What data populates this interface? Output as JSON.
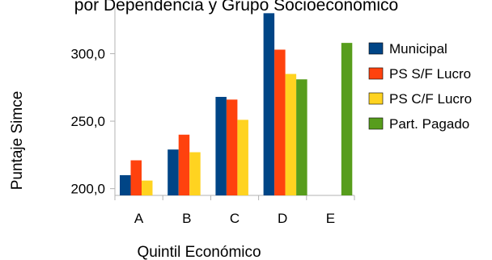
{
  "chart_data": {
    "type": "bar",
    "title": "por Dependencia y Grupo Socioeconómico",
    "xlabel": "Quintil Económico",
    "ylabel": "Puntaje Simce",
    "categories": [
      "A",
      "B",
      "C",
      "D",
      "E"
    ],
    "ylim": [
      195,
      335
    ],
    "yticks": [
      "200,0",
      "250,0",
      "300,0"
    ],
    "ytick_values": [
      200,
      250,
      300
    ],
    "grid": false,
    "legend_position": "right",
    "series": [
      {
        "name": "Municipal",
        "color": "#004586",
        "values": [
          210,
          229,
          268,
          330,
          null
        ]
      },
      {
        "name": "PS S/F Lucro",
        "color": "#ff420e",
        "values": [
          221,
          240,
          266,
          303,
          null
        ]
      },
      {
        "name": "PS C/F Lucro",
        "color": "#ffd320",
        "values": [
          206,
          227,
          251,
          285,
          null
        ]
      },
      {
        "name": "Part. Pagado",
        "color": "#579d1c",
        "values": [
          null,
          null,
          null,
          281,
          308
        ]
      }
    ]
  }
}
